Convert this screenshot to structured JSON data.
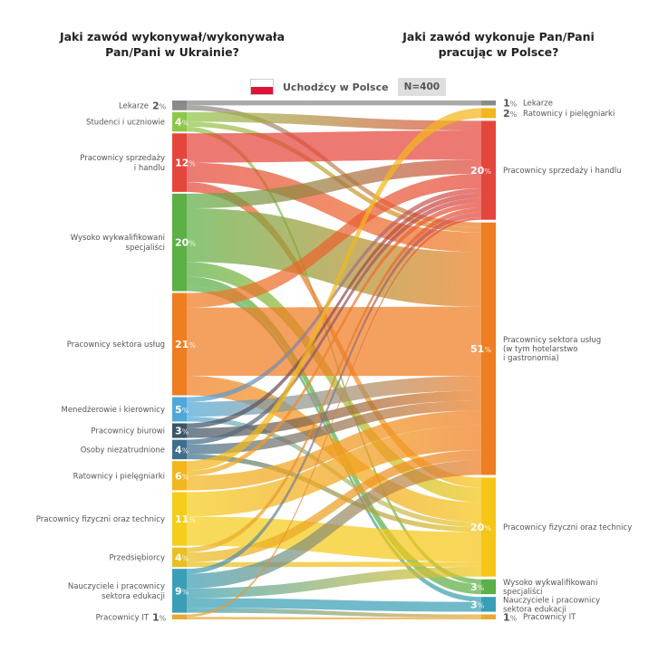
{
  "title_left": "Jaki zawód wykonywał/wykonywała\nPan/Pani w Ukrainie?",
  "title_right": "Jaki zawód wykonuje Pan/Pani\npracując w Polsce?",
  "legend": {
    "label": "Uchodźcy w Polsce",
    "sample": "N=400",
    "flag": "poland-flag-icon"
  },
  "chart_data": {
    "type": "sankey",
    "unit": "%",
    "left_nodes": [
      {
        "id": "lekarze",
        "name": "Lekarze",
        "value": 2,
        "color": "#8a8a8a"
      },
      {
        "id": "studenci",
        "name": "Studenci i uczniowie",
        "value": 4,
        "color": "#8fc74a"
      },
      {
        "id": "sprzedaz",
        "name": "Pracownicy sprzedaży\ni handlu",
        "value": 12,
        "color": "#e5463c"
      },
      {
        "id": "wysoko",
        "name": "Wysoko wykwalifikowani\nspecjaliści",
        "value": 20,
        "color": "#5cb046"
      },
      {
        "id": "uslugi",
        "name": "Pracownicy sektora usług",
        "value": 21,
        "color": "#ef7d22"
      },
      {
        "id": "menedzer",
        "name": "Menedżerowie i kierownicy",
        "value": 5,
        "color": "#4fa8d8"
      },
      {
        "id": "biurowi",
        "name": "Pracownicy biurowi",
        "value": 3,
        "color": "#3a5568"
      },
      {
        "id": "bezrobotni",
        "name": "Osoby niezatrudnione",
        "value": 4,
        "color": "#3d6f8e"
      },
      {
        "id": "ratownicy",
        "name": "Ratownicy i pielęgniarki",
        "value": 6,
        "color": "#f2b71c"
      },
      {
        "id": "fizyczni",
        "name": "Pracownicy fizyczni oraz technicy",
        "value": 11,
        "color": "#f5cd1a"
      },
      {
        "id": "przedsiebiorcy",
        "name": "Przedsiębiorcy",
        "value": 4,
        "color": "#e9bf22"
      },
      {
        "id": "nauczyciele",
        "name": "Nauczyciele i pracownicy\nsektora edukacji",
        "value": 9,
        "color": "#3a9fb6"
      },
      {
        "id": "it",
        "name": "Pracownicy IT",
        "value": 1,
        "color": "#e8a832"
      }
    ],
    "right_nodes": [
      {
        "id": "r_lekarze",
        "name": "Lekarze",
        "value": 1,
        "color": "#8a8a8a"
      },
      {
        "id": "r_ratownicy",
        "name": "Ratownicy i pielęgniarki",
        "value": 2,
        "color": "#f2b71c"
      },
      {
        "id": "r_sprzedaz",
        "name": "Pracownicy sprzedaży i handlu",
        "value": 20,
        "color": "#e5463c"
      },
      {
        "id": "r_uslugi",
        "name": "Pracownicy sektora usług\n(w tym hotelarstwo\ni gastronomia)",
        "value": 51,
        "color": "#ef7d22"
      },
      {
        "id": "r_fizyczni",
        "name": "Pracownicy fizyczni oraz technicy",
        "value": 20,
        "color": "#f5c518"
      },
      {
        "id": "r_wysoko",
        "name": "Wysoko wykwalifikowani\nspecjaliści",
        "value": 3,
        "color": "#5cb046"
      },
      {
        "id": "r_nauczyciele",
        "name": "Nauczyciele i pracownicy\nsektora edukacji",
        "value": 3,
        "color": "#3a9fb6"
      },
      {
        "id": "r_it",
        "name": "Pracownicy IT",
        "value": 1,
        "color": "#e8a832"
      }
    ],
    "links": [
      {
        "source": "lekarze",
        "target": "r_lekarze",
        "value": 1
      },
      {
        "source": "lekarze",
        "target": "r_uslugi",
        "value": 1
      },
      {
        "source": "studenci",
        "target": "r_sprzedaz",
        "value": 2
      },
      {
        "source": "studenci",
        "target": "r_uslugi",
        "value": 1
      },
      {
        "source": "studenci",
        "target": "r_wysoko",
        "value": 1
      },
      {
        "source": "sprzedaz",
        "target": "r_sprzedaz",
        "value": 6
      },
      {
        "source": "sprzedaz",
        "target": "r_uslugi",
        "value": 4
      },
      {
        "source": "sprzedaz",
        "target": "r_fizyczni",
        "value": 2
      },
      {
        "source": "wysoko",
        "target": "r_sprzedaz",
        "value": 3
      },
      {
        "source": "wysoko",
        "target": "r_uslugi",
        "value": 11
      },
      {
        "source": "wysoko",
        "target": "r_fizyczni",
        "value": 3
      },
      {
        "source": "wysoko",
        "target": "r_wysoko",
        "value": 2
      },
      {
        "source": "wysoko",
        "target": "r_nauczyciele",
        "value": 1
      },
      {
        "source": "uslugi",
        "target": "r_sprzedaz",
        "value": 3
      },
      {
        "source": "uslugi",
        "target": "r_uslugi",
        "value": 14
      },
      {
        "source": "uslugi",
        "target": "r_fizyczni",
        "value": 4
      },
      {
        "source": "menedzer",
        "target": "r_sprzedaz",
        "value": 1
      },
      {
        "source": "menedzer",
        "target": "r_uslugi",
        "value": 3
      },
      {
        "source": "menedzer",
        "target": "r_fizyczni",
        "value": 1
      },
      {
        "source": "biurowi",
        "target": "r_sprzedaz",
        "value": 1
      },
      {
        "source": "biurowi",
        "target": "r_uslugi",
        "value": 2
      },
      {
        "source": "bezrobotni",
        "target": "r_sprzedaz",
        "value": 1
      },
      {
        "source": "bezrobotni",
        "target": "r_uslugi",
        "value": 2
      },
      {
        "source": "bezrobotni",
        "target": "r_fizyczni",
        "value": 1
      },
      {
        "source": "ratownicy",
        "target": "r_ratownicy",
        "value": 2
      },
      {
        "source": "ratownicy",
        "target": "r_sprzedaz",
        "value": 1
      },
      {
        "source": "ratownicy",
        "target": "r_uslugi",
        "value": 3
      },
      {
        "source": "fizyczni",
        "target": "r_uslugi",
        "value": 5
      },
      {
        "source": "fizyczni",
        "target": "r_fizyczni",
        "value": 6
      },
      {
        "source": "przedsiebiorcy",
        "target": "r_sprzedaz",
        "value": 1
      },
      {
        "source": "przedsiebiorcy",
        "target": "r_uslugi",
        "value": 2
      },
      {
        "source": "przedsiebiorcy",
        "target": "r_fizyczni",
        "value": 1
      },
      {
        "source": "nauczyciele",
        "target": "r_sprzedaz",
        "value": 1
      },
      {
        "source": "nauczyciele",
        "target": "r_uslugi",
        "value": 3
      },
      {
        "source": "nauczyciele",
        "target": "r_fizyczni",
        "value": 2
      },
      {
        "source": "nauczyciele",
        "target": "r_nauczyciele",
        "value": 2
      },
      {
        "source": "nauczyciele",
        "target": "r_it",
        "value": 1
      },
      {
        "source": "it",
        "target": "r_it",
        "value": 0.5
      },
      {
        "source": "it",
        "target": "r_sprzedaz",
        "value": 0.5
      }
    ]
  }
}
